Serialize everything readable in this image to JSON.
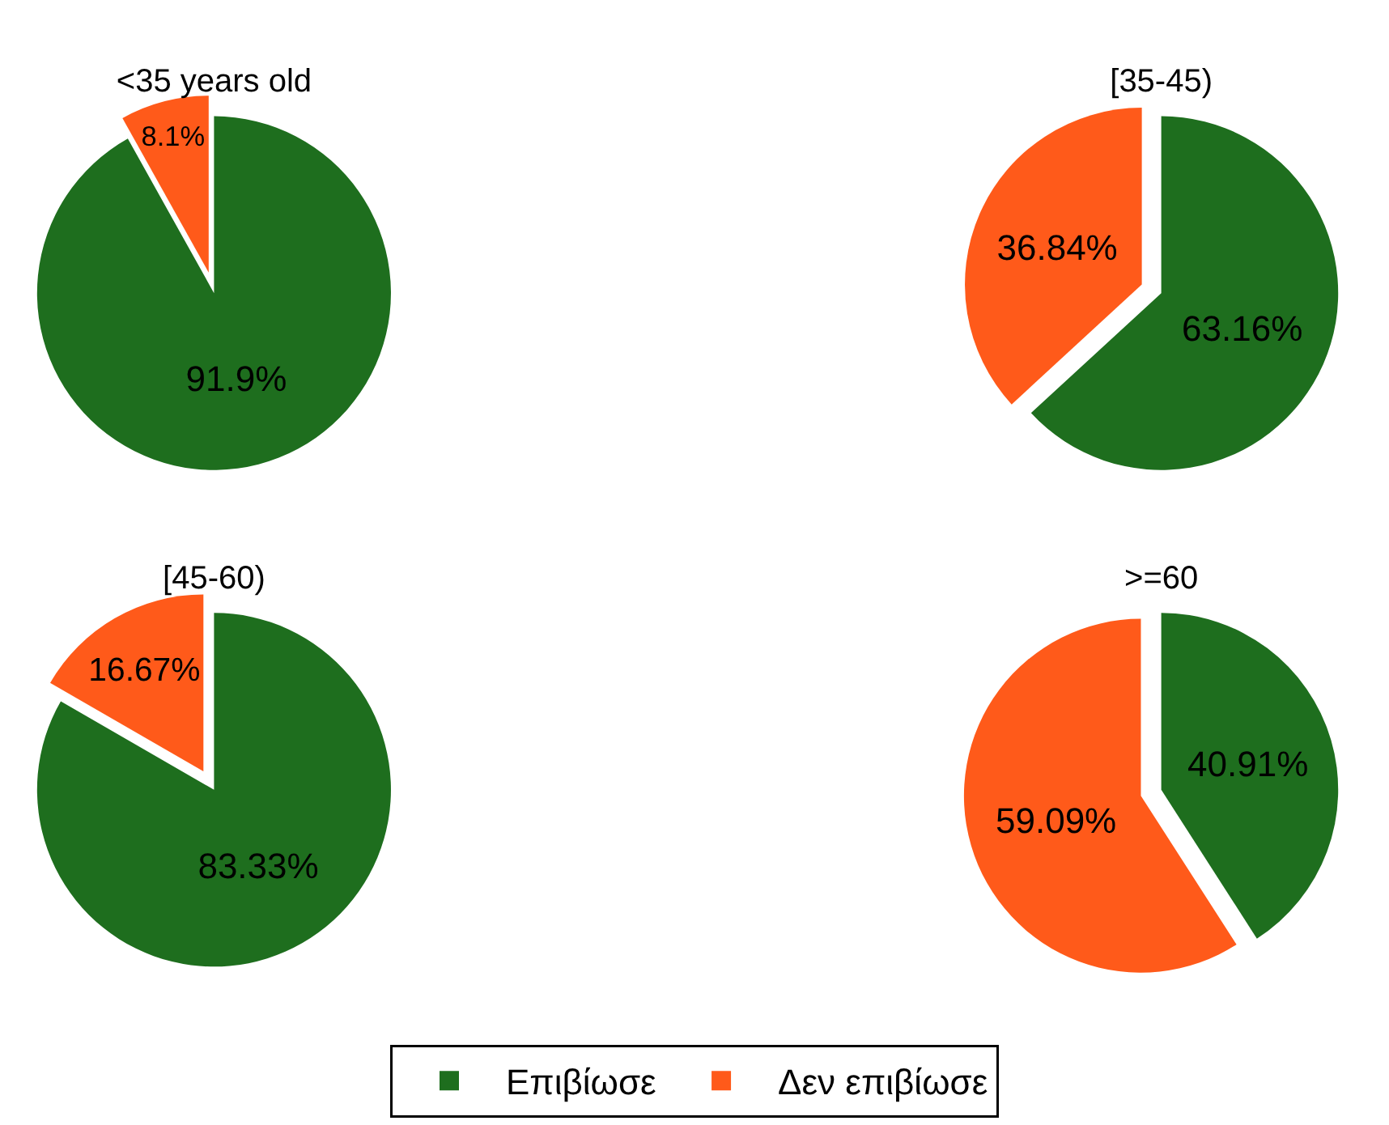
{
  "chart_data": [
    {
      "type": "pie",
      "title": "<35 years old",
      "categories": [
        "Επιβίωσε",
        "Δεν επιβίωσε"
      ],
      "values": [
        91.9,
        8.1
      ],
      "value_labels": [
        "91.9%",
        "8.1%"
      ],
      "colors": [
        "#1e6e1e",
        "#ff5a1a"
      ],
      "legend": "bottom"
    },
    {
      "type": "pie",
      "title": "[35-45)",
      "categories": [
        null,
        null
      ],
      "values": [
        63.16,
        36.84
      ],
      "value_labels": [
        "63.16%",
        "36.84%"
      ],
      "colors": [
        "#1e6e1e",
        "#ff5a1a"
      ]
    },
    {
      "type": "pie",
      "title": "[45-60)",
      "categories": [
        null,
        null
      ],
      "values": [
        83.33,
        16.67
      ],
      "value_labels": [
        "83.33%",
        "16.67%"
      ],
      "colors": [
        "#1e6e1e",
        "#ff5a1a"
      ]
    },
    {
      "type": "pie",
      "title": ">=60",
      "categories": [
        null,
        null
      ],
      "values": [
        40.91,
        59.09
      ],
      "value_labels": [
        "40.91%",
        "59.09%"
      ],
      "colors": [
        "#1e6e1e",
        "#ff5a1a"
      ]
    }
  ]
}
